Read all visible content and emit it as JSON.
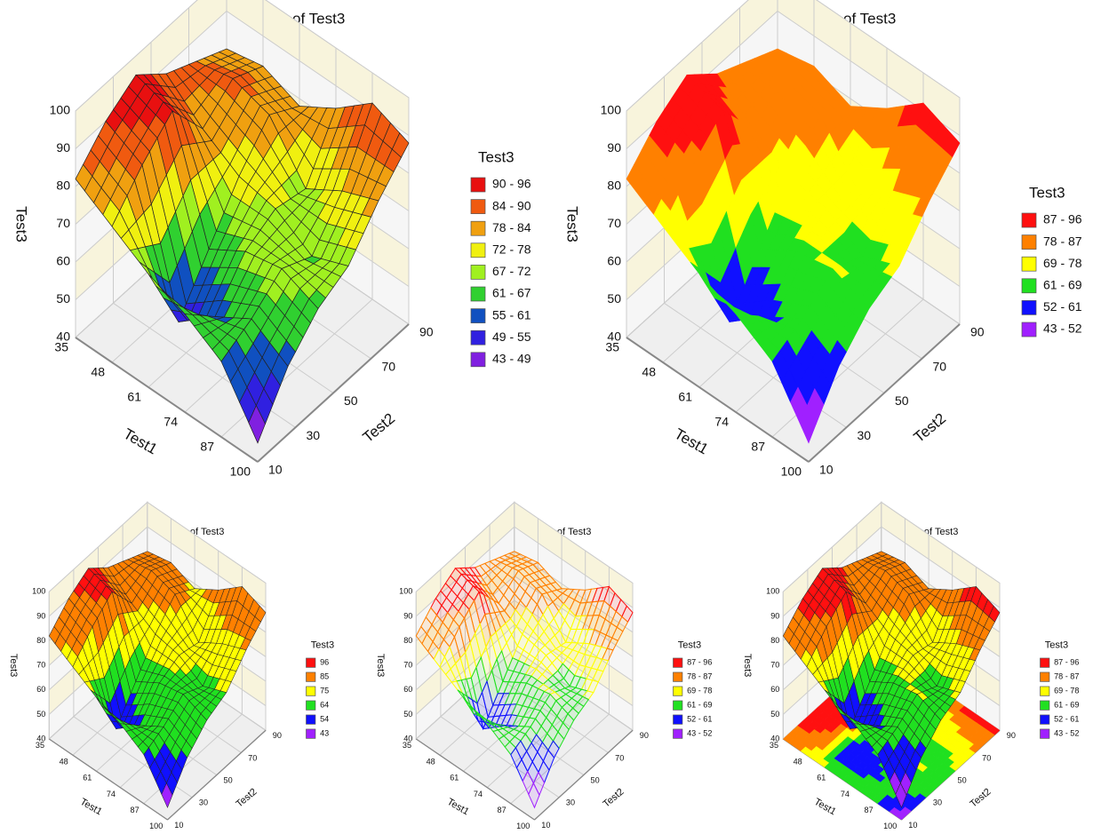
{
  "chart_data": [
    {
      "type": "surface",
      "surface_style": "mesh",
      "title": "Surface Plot of Test3",
      "x_label": "Test1",
      "y_label": "Test2",
      "z_label": "Test3",
      "legend_title": "Test3",
      "x": [
        35,
        48,
        61,
        74,
        87,
        100
      ],
      "y": [
        10,
        26,
        42,
        58,
        74,
        90
      ],
      "z": [
        [
          82,
          90,
          95,
          88,
          84,
          80
        ],
        [
          76,
          85,
          92,
          80,
          86,
          82
        ],
        [
          70,
          50,
          62,
          74,
          83,
          78
        ],
        [
          66,
          58,
          68,
          72,
          70,
          84
        ],
        [
          60,
          64,
          70,
          66,
          76,
          92
        ],
        [
          45,
          58,
          66,
          70,
          80,
          88
        ]
      ],
      "xlim": [
        35,
        100
      ],
      "xticks": [
        35,
        48,
        61,
        74,
        87,
        100
      ],
      "ylim": [
        10,
        90
      ],
      "yticks": [
        10,
        30,
        50,
        70,
        90
      ],
      "zlim": [
        40,
        100
      ],
      "zticks": [
        40,
        50,
        60,
        70,
        80,
        90,
        100
      ],
      "series": [
        {
          "name": "90 - 96",
          "color": "#e81010"
        },
        {
          "name": "84 - 90",
          "color": "#f05a10"
        },
        {
          "name": "78 - 84",
          "color": "#f0a010"
        },
        {
          "name": "72 - 78",
          "color": "#f0f010"
        },
        {
          "name": "67 - 72",
          "color": "#a0f020"
        },
        {
          "name": "61 - 67",
          "color": "#30d030"
        },
        {
          "name": "55 - 61",
          "color": "#1050c0"
        },
        {
          "name": "49 - 55",
          "color": "#3020e0"
        },
        {
          "name": "43 - 49",
          "color": "#8020e0"
        }
      ]
    },
    {
      "type": "surface",
      "surface_style": "smooth",
      "title": "Surface Plot of Test3",
      "x_label": "Test1",
      "y_label": "Test2",
      "z_label": "Test3",
      "legend_title": "Test3",
      "x": [
        35,
        48,
        61,
        74,
        87,
        100
      ],
      "y": [
        10,
        26,
        42,
        58,
        74,
        90
      ],
      "z": [
        [
          82,
          90,
          95,
          88,
          84,
          80
        ],
        [
          76,
          85,
          92,
          80,
          86,
          82
        ],
        [
          70,
          50,
          62,
          74,
          83,
          78
        ],
        [
          66,
          58,
          68,
          72,
          70,
          84
        ],
        [
          60,
          64,
          70,
          66,
          76,
          92
        ],
        [
          45,
          58,
          66,
          70,
          80,
          88
        ]
      ],
      "xlim": [
        35,
        100
      ],
      "xticks": [
        35,
        48,
        61,
        74,
        87,
        100
      ],
      "ylim": [
        10,
        90
      ],
      "yticks": [
        10,
        30,
        50,
        70,
        90
      ],
      "zlim": [
        40,
        100
      ],
      "zticks": [
        40,
        50,
        60,
        70,
        80,
        90,
        100
      ],
      "series": [
        {
          "name": "87 - 96",
          "color": "#ff1010"
        },
        {
          "name": "78 - 87",
          "color": "#ff8000"
        },
        {
          "name": "69 - 78",
          "color": "#ffff00"
        },
        {
          "name": "61 - 69",
          "color": "#20e020"
        },
        {
          "name": "52 - 61",
          "color": "#1010ff"
        },
        {
          "name": "43 - 52",
          "color": "#a020ff"
        }
      ]
    },
    {
      "type": "surface",
      "surface_style": "mesh",
      "title": "Surface Plot of Test3",
      "x_label": "Test1",
      "y_label": "Test2",
      "z_label": "Test3",
      "legend_title": "Test3",
      "x": [
        35,
        48,
        61,
        74,
        87,
        100
      ],
      "y": [
        10,
        26,
        42,
        58,
        74,
        90
      ],
      "z": [
        [
          82,
          90,
          95,
          88,
          84,
          80
        ],
        [
          76,
          85,
          92,
          80,
          86,
          82
        ],
        [
          70,
          50,
          62,
          74,
          83,
          78
        ],
        [
          66,
          58,
          68,
          72,
          70,
          84
        ],
        [
          60,
          64,
          70,
          66,
          76,
          92
        ],
        [
          45,
          58,
          66,
          70,
          80,
          88
        ]
      ],
      "xlim": [
        35,
        100
      ],
      "xticks": [
        35,
        48,
        61,
        74,
        87,
        100
      ],
      "ylim": [
        10,
        90
      ],
      "yticks": [
        10,
        30,
        50,
        70,
        90
      ],
      "zlim": [
        40,
        100
      ],
      "zticks": [
        40,
        50,
        60,
        70,
        80,
        90,
        100
      ],
      "series": [
        {
          "name": "96",
          "color": "#ff1010"
        },
        {
          "name": "85",
          "color": "#ff8000"
        },
        {
          "name": "75",
          "color": "#ffff00"
        },
        {
          "name": "64",
          "color": "#20e020"
        },
        {
          "name": "54",
          "color": "#1010ff"
        },
        {
          "name": "43",
          "color": "#a020ff"
        }
      ]
    },
    {
      "type": "surface",
      "surface_style": "wireframe",
      "title": "Surface Plot of Test3",
      "x_label": "Test1",
      "y_label": "Test2",
      "z_label": "Test3",
      "legend_title": "Test3",
      "x": [
        35,
        48,
        61,
        74,
        87,
        100
      ],
      "y": [
        10,
        26,
        42,
        58,
        74,
        90
      ],
      "z": [
        [
          82,
          90,
          95,
          88,
          84,
          80
        ],
        [
          76,
          85,
          92,
          80,
          86,
          82
        ],
        [
          70,
          50,
          62,
          74,
          83,
          78
        ],
        [
          66,
          58,
          68,
          72,
          70,
          84
        ],
        [
          60,
          64,
          70,
          66,
          76,
          92
        ],
        [
          45,
          58,
          66,
          70,
          80,
          88
        ]
      ],
      "xlim": [
        35,
        100
      ],
      "xticks": [
        35,
        48,
        61,
        74,
        87,
        100
      ],
      "ylim": [
        10,
        90
      ],
      "yticks": [
        10,
        30,
        50,
        70,
        90
      ],
      "zlim": [
        40,
        100
      ],
      "zticks": [
        40,
        50,
        60,
        70,
        80,
        90,
        100
      ],
      "series": [
        {
          "name": "87 - 96",
          "color": "#ff1010"
        },
        {
          "name": "78 - 87",
          "color": "#ff8000"
        },
        {
          "name": "69 - 78",
          "color": "#ffff00"
        },
        {
          "name": "61 - 69",
          "color": "#20e020"
        },
        {
          "name": "52 - 61",
          "color": "#1010ff"
        },
        {
          "name": "43 - 52",
          "color": "#a020ff"
        }
      ]
    },
    {
      "type": "surface",
      "surface_style": "mesh",
      "floor_contour": true,
      "title": "Surface Plot of Test3",
      "x_label": "Test1",
      "y_label": "Test2",
      "z_label": "Test3",
      "legend_title": "Test3",
      "x": [
        35,
        48,
        61,
        74,
        87,
        100
      ],
      "y": [
        10,
        26,
        42,
        58,
        74,
        90
      ],
      "z": [
        [
          82,
          90,
          95,
          88,
          84,
          80
        ],
        [
          76,
          85,
          92,
          80,
          86,
          82
        ],
        [
          70,
          50,
          62,
          74,
          83,
          78
        ],
        [
          66,
          58,
          68,
          72,
          70,
          84
        ],
        [
          60,
          64,
          70,
          66,
          76,
          92
        ],
        [
          45,
          58,
          66,
          70,
          80,
          88
        ]
      ],
      "xlim": [
        35,
        100
      ],
      "xticks": [
        35,
        48,
        61,
        74,
        87,
        100
      ],
      "ylim": [
        10,
        90
      ],
      "yticks": [
        10,
        30,
        50,
        70,
        90
      ],
      "zlim": [
        40,
        100
      ],
      "zticks": [
        40,
        50,
        60,
        70,
        80,
        90,
        100
      ],
      "series": [
        {
          "name": "87 - 96",
          "color": "#ff1010"
        },
        {
          "name": "78 - 87",
          "color": "#ff8000"
        },
        {
          "name": "69 - 78",
          "color": "#ffff00"
        },
        {
          "name": "61 - 69",
          "color": "#20e020"
        },
        {
          "name": "52 - 61",
          "color": "#1010ff"
        },
        {
          "name": "43 - 52",
          "color": "#a020ff"
        }
      ]
    }
  ]
}
